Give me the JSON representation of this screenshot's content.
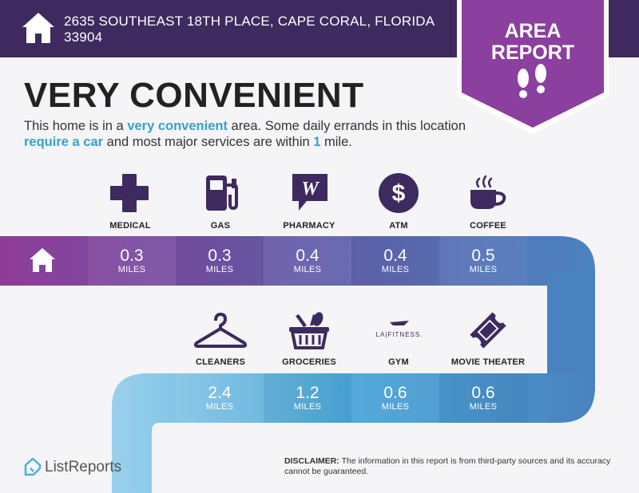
{
  "header": {
    "address": "2635 SOUTHEAST 18TH PLACE, CAPE CORAL, FLORIDA 33904",
    "badge_line1": "AREA",
    "badge_line2": "REPORT"
  },
  "headline": "VERY CONVENIENT",
  "description": {
    "p1": "This home is in a ",
    "h1": "very convenient",
    "p2": " area. Some daily errands in this location ",
    "h2": "require a car",
    "p3": " and most major services are within ",
    "h3": "1",
    "p4": " mile."
  },
  "unit_label": "MILES",
  "row1": [
    {
      "name": "MEDICAL",
      "distance": "0.3",
      "icon": "medical-cross-icon"
    },
    {
      "name": "GAS",
      "distance": "0.3",
      "icon": "gas-pump-icon"
    },
    {
      "name": "PHARMACY",
      "distance": "0.4",
      "icon": "walgreens-logo-icon"
    },
    {
      "name": "ATM",
      "distance": "0.4",
      "icon": "dollar-coin-icon"
    },
    {
      "name": "COFFEE",
      "distance": "0.5",
      "icon": "coffee-cup-icon"
    }
  ],
  "row2": [
    {
      "name": "CLEANERS",
      "distance": "2.4",
      "icon": "hanger-icon"
    },
    {
      "name": "GROCERIES",
      "distance": "1.2",
      "icon": "grocery-basket-icon"
    },
    {
      "name": "GYM",
      "distance": "0.6",
      "icon": "la-fitness-logo-icon",
      "logo_text": "LA|FITNESS."
    },
    {
      "name": "MOVIE THEATER",
      "distance": "0.6",
      "icon": "movie-ticket-icon"
    }
  ],
  "footer": {
    "brand": "ListReports",
    "disclaimer_label": "DISCLAIMER:",
    "disclaimer_text": " The information in this report is from third-party sources and its accuracy cannot be guaranteed."
  },
  "colors": {
    "header": "#3e2a5f",
    "badge": "#8b3f9e",
    "accent_text": "#3aa0c8",
    "band_purple": "#8e3c98",
    "band_blue": "#4a82c0",
    "band_light_blue": "#7ec3e6"
  }
}
